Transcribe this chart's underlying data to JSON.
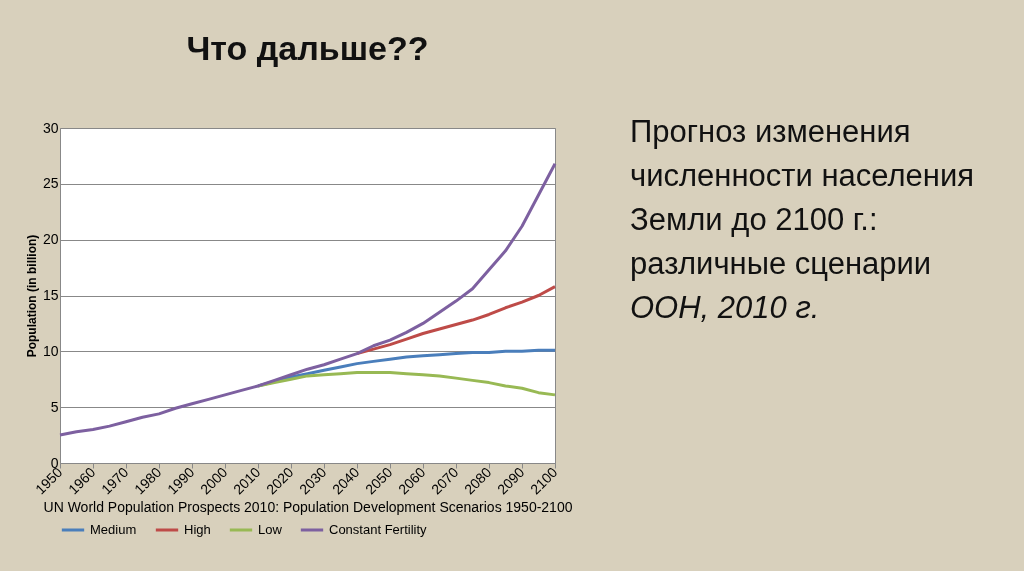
{
  "chart_data": {
    "type": "line",
    "title": "Что дальше??",
    "xlabel": "UN World Population Prospects 2010: Population Development Scenarios 1950-2100",
    "ylabel": "Population (in billion)",
    "annotations": [
      "Прогноз изменения численности населения Земли до 2100 г.: различные сценарии",
      "ООН, 2010 г."
    ],
    "x": [
      1950,
      1955,
      1960,
      1965,
      1970,
      1975,
      1980,
      1985,
      1990,
      1995,
      2000,
      2005,
      2010,
      2015,
      2020,
      2025,
      2030,
      2035,
      2040,
      2045,
      2050,
      2055,
      2060,
      2065,
      2070,
      2075,
      2080,
      2085,
      2090,
      2095,
      2100
    ],
    "series": [
      {
        "name": "Medium",
        "color": "#4a7ebb",
        "values": [
          null,
          null,
          null,
          null,
          null,
          null,
          null,
          null,
          null,
          null,
          null,
          null,
          6.9,
          7.3,
          7.7,
          8.0,
          8.3,
          8.6,
          8.9,
          9.1,
          9.3,
          9.5,
          9.6,
          9.7,
          9.8,
          9.9,
          9.9,
          10.0,
          10.0,
          10.1,
          10.1
        ]
      },
      {
        "name": "High",
        "color": "#be4b48",
        "values": [
          null,
          null,
          null,
          null,
          null,
          null,
          null,
          null,
          null,
          null,
          null,
          null,
          null,
          null,
          null,
          null,
          null,
          null,
          9.8,
          10.2,
          10.6,
          11.1,
          11.6,
          12.0,
          12.4,
          12.8,
          13.3,
          13.9,
          14.4,
          15.0,
          15.8
        ]
      },
      {
        "name": "Low",
        "color": "#98b954",
        "values": [
          null,
          null,
          null,
          null,
          null,
          null,
          null,
          null,
          null,
          null,
          null,
          null,
          6.9,
          7.2,
          7.5,
          7.8,
          7.9,
          8.0,
          8.1,
          8.1,
          8.1,
          8.0,
          7.9,
          7.8,
          7.6,
          7.4,
          7.2,
          6.9,
          6.7,
          6.3,
          6.1
        ]
      },
      {
        "name": "Constant Fertility",
        "color": "#7d60a0",
        "values": [
          2.5,
          2.8,
          3.0,
          3.3,
          3.7,
          4.1,
          4.4,
          4.9,
          5.3,
          5.7,
          6.1,
          6.5,
          6.9,
          7.4,
          7.9,
          8.4,
          8.8,
          9.3,
          9.8,
          10.5,
          11.0,
          11.7,
          12.5,
          13.5,
          14.5,
          15.6,
          17.3,
          19.0,
          21.2,
          24.0,
          26.8
        ]
      }
    ],
    "xlim": [
      1950,
      2100
    ],
    "xticks": [
      1950,
      1960,
      1970,
      1980,
      1990,
      2000,
      2010,
      2020,
      2030,
      2040,
      2050,
      2060,
      2070,
      2080,
      2090,
      2100
    ],
    "ylim": [
      0,
      30
    ],
    "yticks": [
      0,
      5,
      10,
      15,
      20,
      25,
      30
    ],
    "grid": "y",
    "legend": "bottom",
    "marker": "none",
    "line_style": "solid"
  }
}
